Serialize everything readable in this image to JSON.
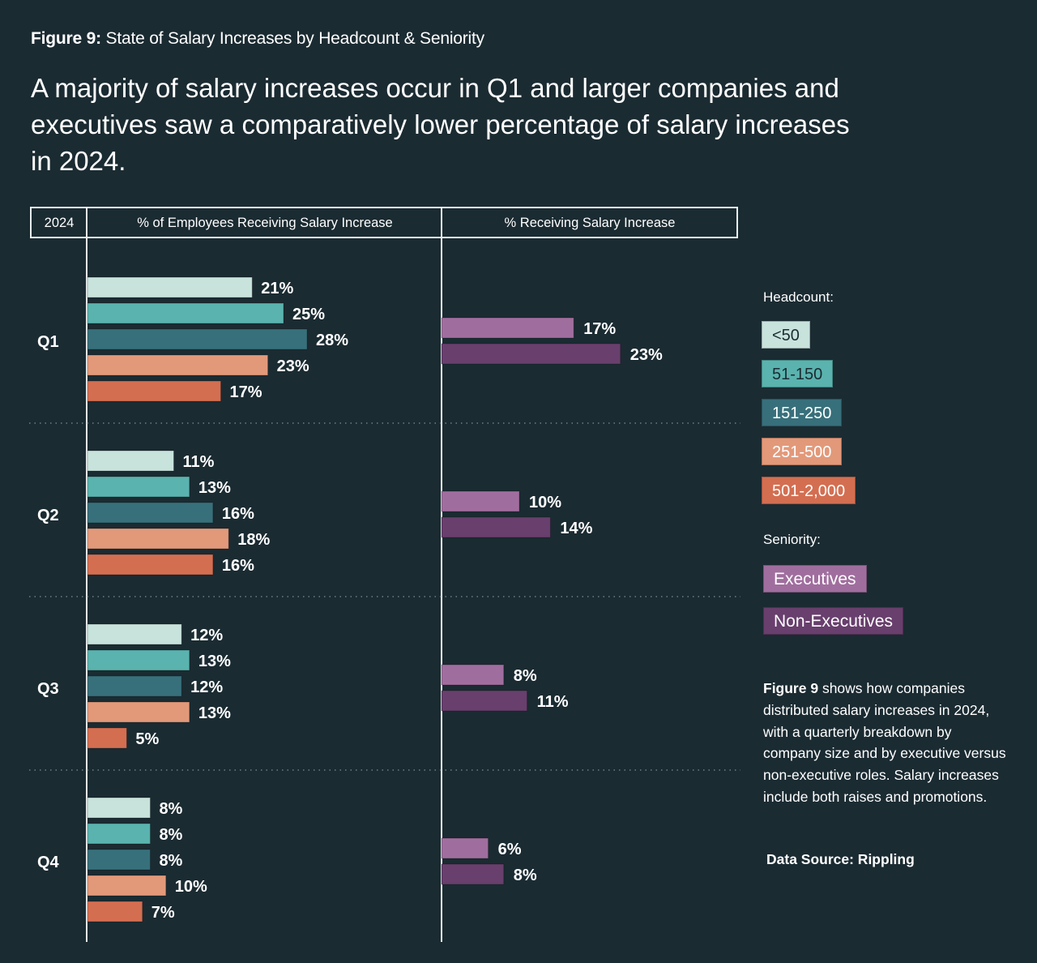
{
  "figure_label": {
    "prefix": "Figure 9:",
    "title": "State of Salary Increases by Headcount & Seniority"
  },
  "headline": "A majority of salary increases occur in Q1 and larger companies and executives saw a comparatively lower percentage of salary increases in 2024.",
  "table_header": {
    "year": "2024",
    "left_column": "% of Employees Receiving Salary Increase",
    "right_column": "% Receiving Salary Increase"
  },
  "legend": {
    "headcount_title": "Headcount:",
    "seniority_title": "Seniority:"
  },
  "note": {
    "bold": "Figure 9",
    "text": " shows how companies distributed salary increases in 2024, with a quarterly breakdown by company size and by executive versus non-executive roles. Salary increases include both raises and promotions."
  },
  "source": "Data Source: Rippling",
  "chart_data": [
    {
      "type": "bar",
      "orientation": "horizontal",
      "title": "% of Employees Receiving Salary Increase",
      "group_label": "Headcount",
      "categories": [
        "Q1",
        "Q2",
        "Q3",
        "Q4"
      ],
      "series": [
        {
          "name": "<50",
          "color": "#c8e3dc",
          "text_color": "#1b2b32",
          "values": [
            21,
            11,
            12,
            8
          ]
        },
        {
          "name": "51-150",
          "color": "#5ab3ae",
          "text_color": "#1b2b32",
          "values": [
            25,
            13,
            13,
            8
          ]
        },
        {
          "name": "151-250",
          "color": "#37707b",
          "text_color": "#ffffff",
          "values": [
            28,
            16,
            12,
            8
          ]
        },
        {
          "name": "251-500",
          "color": "#e2997a",
          "text_color": "#ffffff",
          "values": [
            23,
            18,
            13,
            10
          ]
        },
        {
          "name": "501-2,000",
          "color": "#d46e51",
          "text_color": "#ffffff",
          "values": [
            17,
            16,
            5,
            7
          ]
        }
      ],
      "value_suffix": "%",
      "xlim": [
        0,
        45
      ],
      "grid": false,
      "legend_position": "right"
    },
    {
      "type": "bar",
      "orientation": "horizontal",
      "title": "% Receiving Salary Increase",
      "group_label": "Seniority",
      "categories": [
        "Q1",
        "Q2",
        "Q3",
        "Q4"
      ],
      "series": [
        {
          "name": "Executives",
          "color": "#a06e9e",
          "text_color": "#ffffff",
          "values": [
            17,
            10,
            8,
            6
          ]
        },
        {
          "name": "Non-Executives",
          "color": "#683f6d",
          "text_color": "#ffffff",
          "values": [
            23,
            14,
            11,
            8
          ]
        }
      ],
      "value_suffix": "%",
      "xlim": [
        0,
        38
      ],
      "grid": false,
      "legend_position": "right"
    }
  ]
}
